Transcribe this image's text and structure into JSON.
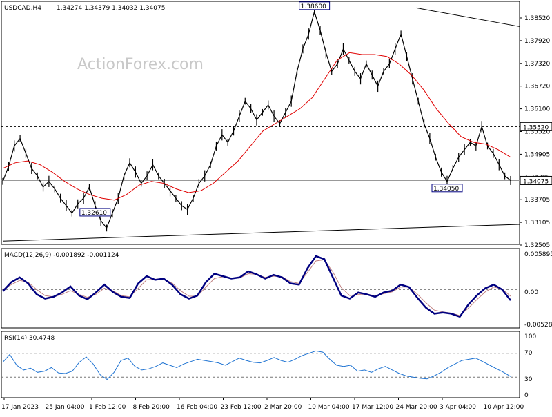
{
  "header": {
    "symbol": "USDCAD,H4",
    "ohlc": "1.34274 1.34379 1.34032 1.34075"
  },
  "watermark": "ActionForex.com",
  "colors": {
    "price": "#000000",
    "ma": "#e00000",
    "macd": "#000080",
    "signal": "#c08080",
    "rsi": "#1e73d2",
    "level_box": "#000080"
  },
  "chart_data": [
    {
      "type": "line",
      "panel": "price",
      "ylim": [
        1.324,
        1.388
      ],
      "yticks": [
        "1.38520",
        "1.37920",
        "1.37320",
        "1.36720",
        "1.36100",
        "1.35520",
        "1.34905",
        "1.34305",
        "1.33705",
        "1.33105",
        "1.32505"
      ],
      "current_price_label": "1.34075",
      "current_price": 1.34075,
      "resistance_label": "1.35520",
      "resistance": 1.3552,
      "series": [
        {
          "values": [
            1.3405,
            1.3445,
            1.35,
            1.352,
            1.348,
            1.344,
            1.342,
            1.339,
            1.3405,
            1.3385,
            1.336,
            1.334,
            1.332,
            1.3345,
            1.336,
            1.339,
            1.334,
            1.33,
            1.328,
            1.332,
            1.336,
            1.342,
            1.3455,
            1.343,
            1.34,
            1.342,
            1.345,
            1.342,
            1.34,
            1.338,
            1.336,
            1.334,
            1.333,
            1.336,
            1.34,
            1.342,
            1.345,
            1.35,
            1.353,
            1.351,
            1.354,
            1.358,
            1.362,
            1.36,
            1.357,
            1.359,
            1.361,
            1.358,
            1.356,
            1.359,
            1.362,
            1.37,
            1.376,
            1.38,
            1.386,
            1.381,
            1.375,
            1.37,
            1.372,
            1.376,
            1.373,
            1.37,
            1.368,
            1.372,
            1.369,
            1.366,
            1.37,
            1.372,
            1.376,
            1.38,
            1.374,
            1.368,
            1.362,
            1.356,
            1.352,
            1.347,
            1.343,
            1.3405,
            1.344,
            1.347,
            1.349,
            1.351,
            1.35,
            1.3552,
            1.35,
            1.348,
            1.345,
            1.342,
            1.34075
          ]
        },
        {
          "values": [
            1.344,
            1.3455,
            1.346,
            1.345,
            1.343,
            1.3405,
            1.3385,
            1.337,
            1.336,
            1.3355,
            1.337,
            1.3395,
            1.3405,
            1.34,
            1.3385,
            1.3375,
            1.338,
            1.34,
            1.343,
            1.346,
            1.35,
            1.354,
            1.356,
            1.358,
            1.36,
            1.363,
            1.368,
            1.373,
            1.375,
            1.3745,
            1.3745,
            1.374,
            1.372,
            1.369,
            1.365,
            1.36,
            1.356,
            1.3525,
            1.351,
            1.3505,
            1.349,
            1.347
          ]
        }
      ],
      "annotations": [
        {
          "label": "1.38600",
          "x_index": 54
        },
        {
          "label": "1.32610",
          "x_index": 16
        },
        {
          "label": "1.34050",
          "x_index": 77
        }
      ],
      "trendlines": [
        {
          "from": [
            0.8,
            1.387
          ],
          "to": [
            1.0,
            1.382
          ]
        },
        {
          "from": [
            0.0,
            1.3245
          ],
          "to": [
            1.0,
            1.329
          ]
        }
      ]
    },
    {
      "type": "line",
      "panel": "macd",
      "label": "MACD(12,26,9) -0.001892 -0.001124",
      "ylim": [
        -0.006,
        0.0063
      ],
      "yticks": [
        "0.005895",
        "0.00",
        "-0.005286"
      ],
      "series": [
        {
          "values": [
            -0.0003,
            0.0012,
            0.002,
            0.001,
            -0.0008,
            -0.0015,
            -0.0012,
            -0.0005,
            0.0005,
            -0.001,
            -0.0016,
            -0.0005,
            0.0008,
            -0.0004,
            -0.0012,
            -0.0014,
            0.001,
            0.0022,
            0.0016,
            0.0018,
            0.0008,
            -0.0008,
            -0.0015,
            -0.001,
            0.0012,
            0.0026,
            0.0022,
            0.0018,
            0.002,
            0.003,
            0.0025,
            0.0018,
            0.0024,
            0.002,
            0.001,
            0.0008,
            0.0035,
            0.0055,
            0.005,
            0.002,
            -0.001,
            -0.0015,
            -0.0005,
            -0.0008,
            -0.0012,
            -0.0005,
            -0.0002,
            0.0008,
            0.0004,
            -0.0014,
            -0.003,
            -0.004,
            -0.0038,
            -0.004,
            -0.0045,
            -0.0025,
            -0.001,
            0.0002,
            0.0008,
            0.0,
            -0.0018
          ]
        },
        {
          "values": [
            0.0,
            0.0008,
            0.0015,
            0.0012,
            0.0,
            -0.001,
            -0.0012,
            -0.0008,
            -0.0002,
            -0.0008,
            -0.0013,
            -0.0008,
            0.0002,
            -0.0002,
            -0.001,
            -0.0012,
            0.0002,
            0.0016,
            0.0017,
            0.0017,
            0.0011,
            -0.0002,
            -0.0011,
            -0.0011,
            0.0004,
            0.0018,
            0.0021,
            0.0019,
            0.0019,
            0.0026,
            0.0025,
            0.002,
            0.0022,
            0.0021,
            0.0013,
            0.001,
            0.0028,
            0.0047,
            0.0049,
            0.0029,
            0.0003,
            -0.001,
            -0.0008,
            -0.0008,
            -0.001,
            -0.0007,
            -0.0004,
            0.0004,
            0.0004,
            -0.0008,
            -0.0022,
            -0.0034,
            -0.0037,
            -0.0039,
            -0.0043,
            -0.0031,
            -0.0017,
            -0.0004,
            0.0004,
            0.0001,
            -0.0011
          ]
        }
      ]
    },
    {
      "type": "line",
      "panel": "rsi",
      "label": "RSI(14) 30.4748",
      "ylim": [
        0,
        100
      ],
      "yticks": [
        "100",
        "70",
        "30",
        "0"
      ],
      "levels": [
        70,
        30
      ],
      "series": [
        {
          "values": [
            55,
            68,
            50,
            42,
            45,
            38,
            40,
            46,
            37,
            36,
            40,
            55,
            64,
            52,
            34,
            26,
            38,
            58,
            62,
            48,
            42,
            44,
            48,
            54,
            50,
            46,
            52,
            56,
            60,
            58,
            56,
            54,
            50,
            56,
            62,
            58,
            55,
            54,
            58,
            63,
            58,
            55,
            60,
            66,
            70,
            74,
            72,
            60,
            50,
            48,
            50,
            40,
            42,
            38,
            44,
            48,
            42,
            36,
            32,
            30,
            28,
            27,
            32,
            38,
            46,
            52,
            58,
            60,
            62,
            56,
            50,
            44,
            38,
            31
          ]
        }
      ]
    }
  ],
  "x_axis": {
    "labels": [
      "17 Jan 2023",
      "25 Jan 04:00",
      "1 Feb 12:00",
      "8 Feb 20:00",
      "16 Feb 04:00",
      "23 Feb 12:00",
      "2 Mar 20:00",
      "10 Mar 04:00",
      "17 Mar 12:00",
      "24 Mar 20:00",
      "3 Apr 04:00",
      "10 Apr 12:00"
    ]
  }
}
